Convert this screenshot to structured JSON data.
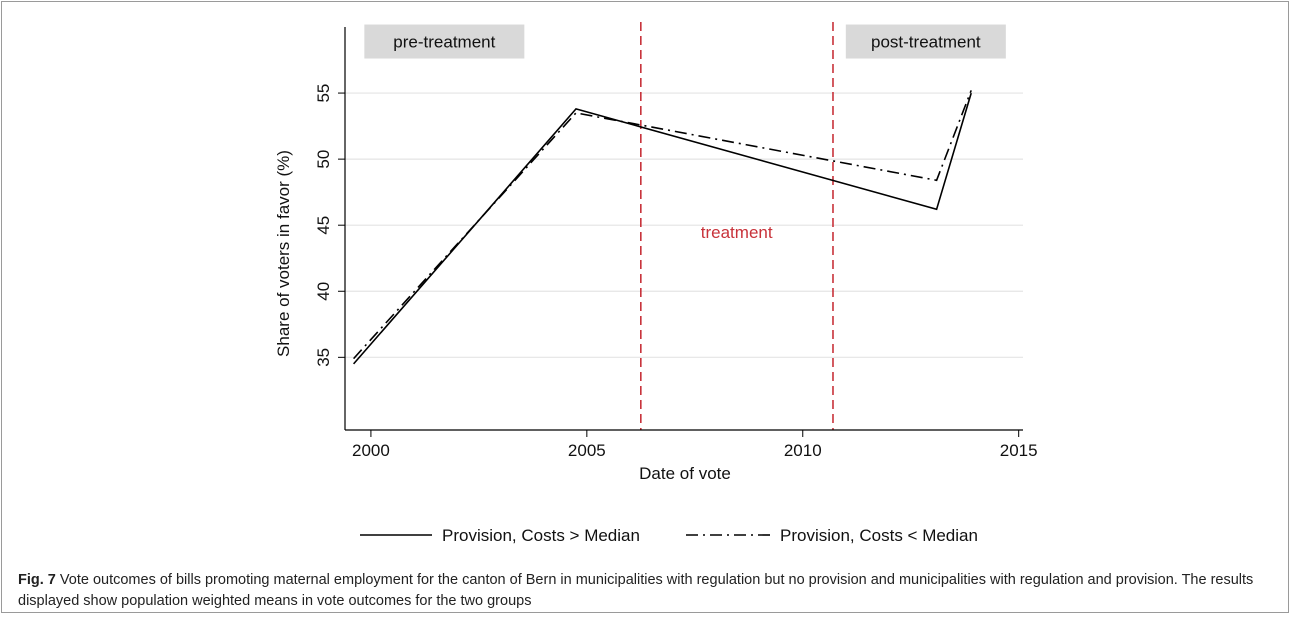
{
  "colors": {
    "line": "#000000",
    "treatment": "#c8323a",
    "box": "#d9d9d9",
    "grid": "#e4e4e4"
  },
  "chart_data": {
    "type": "line",
    "xlabel": "Date of vote",
    "ylabel": "Share of voters in favor (%)",
    "xlim": [
      1999.4,
      2015.1
    ],
    "ylim": [
      29.5,
      60
    ],
    "xticks": [
      2000,
      2005,
      2010,
      2015
    ],
    "yticks": [
      35,
      40,
      45,
      50,
      55
    ],
    "grid": true,
    "legend_placement": "bottom",
    "series": [
      {
        "name": "Provision, Costs > Median",
        "style": "solid",
        "points": [
          [
            1999.6,
            34.5
          ],
          [
            2004.75,
            53.8
          ],
          [
            2013.1,
            46.2
          ],
          [
            2013.9,
            55.0
          ]
        ]
      },
      {
        "name": "Provision, Costs < Median",
        "style": "dashdot",
        "points": [
          [
            1999.6,
            34.9
          ],
          [
            2004.75,
            53.5
          ],
          [
            2013.1,
            48.4
          ],
          [
            2013.9,
            55.2
          ]
        ]
      }
    ],
    "vlines": [
      2006.25,
      2010.7
    ],
    "annotations": [
      {
        "text": "pre-treatment",
        "x": 2001.7,
        "y": 58.9,
        "boxed": true
      },
      {
        "text": "treatment",
        "x": 2008.47,
        "y": 44.5,
        "boxed": false
      },
      {
        "text": "post-treatment",
        "x": 2012.85,
        "y": 58.9,
        "boxed": true
      }
    ]
  },
  "caption": {
    "label": "Fig. 7",
    "text": " Vote outcomes of bills promoting maternal employment for the canton of Bern in municipalities with regulation but no provision and municipalities with regulation and provision. The results displayed show population weighted means in vote outcomes for the two groups"
  }
}
